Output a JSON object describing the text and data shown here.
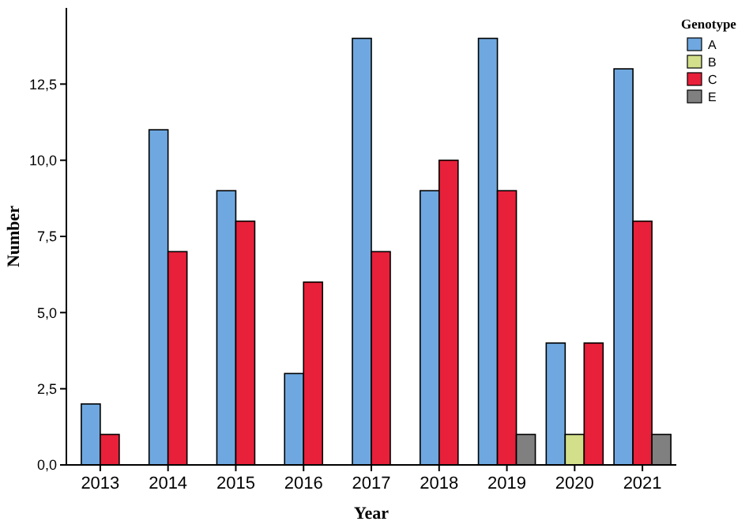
{
  "chart_data": {
    "type": "bar",
    "xlabel": "Year",
    "ylabel": "Number",
    "legend_title": "Genotype",
    "legend": "top right",
    "grid": false,
    "categories": [
      "2013",
      "2014",
      "2015",
      "2016",
      "2017",
      "2018",
      "2019",
      "2020",
      "2021"
    ],
    "ylim": [
      0,
      15
    ],
    "yticks": [
      {
        "value": 0,
        "label": "0,0"
      },
      {
        "value": 2.5,
        "label": "2,5"
      },
      {
        "value": 5,
        "label": "5,0"
      },
      {
        "value": 7.5,
        "label": "7,5"
      },
      {
        "value": 10,
        "label": "10,0"
      },
      {
        "value": 12.5,
        "label": "12,5"
      }
    ],
    "series": [
      {
        "name": "A",
        "color": "#6fa8e0",
        "values": [
          2,
          11,
          9,
          3,
          14,
          9,
          14,
          4,
          13
        ]
      },
      {
        "name": "B",
        "color": "#d3df8a",
        "values": [
          null,
          null,
          null,
          null,
          null,
          null,
          null,
          1,
          null
        ]
      },
      {
        "name": "C",
        "color": "#e8203a",
        "values": [
          1,
          7,
          8,
          6,
          7,
          10,
          9,
          4,
          8
        ]
      },
      {
        "name": "E",
        "color": "#808080",
        "values": [
          null,
          null,
          null,
          null,
          null,
          null,
          1,
          null,
          1
        ]
      }
    ]
  }
}
